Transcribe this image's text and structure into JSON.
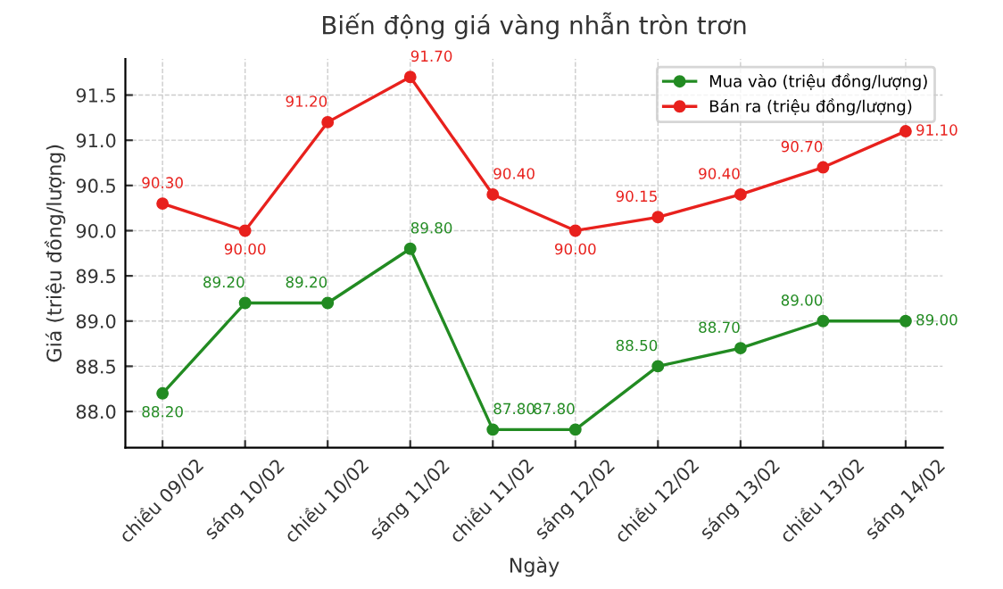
{
  "chart_data": {
    "type": "line",
    "title": "Biến động giá vàng nhẫn tròn trơn",
    "xlabel": "Ngày",
    "ylabel": "Giá (triệu đồng/lượng)",
    "categories": [
      "chiều 09/02",
      "sáng 10/02",
      "chiều 10/02",
      "sáng 11/02",
      "chiều 11/02",
      "sáng 12/02",
      "chiều 12/02",
      "sáng 13/02",
      "chiều 13/02",
      "sáng 14/02"
    ],
    "series": [
      {
        "name": "Mua vào (triệu đồng/lượng)",
        "color": "#228b22",
        "values": [
          88.2,
          89.2,
          89.2,
          89.8,
          87.8,
          87.8,
          88.5,
          88.7,
          89.0,
          89.0
        ],
        "value_labels": [
          "88.20",
          "89.20",
          "89.20",
          "89.80",
          "87.80",
          "87.80",
          "88.50",
          "88.70",
          "89.00",
          "89.00"
        ]
      },
      {
        "name": "Bán ra (triệu đồng/lượng)",
        "color": "#e8211d",
        "values": [
          90.3,
          90.0,
          91.2,
          91.7,
          90.4,
          90.0,
          90.15,
          90.4,
          90.7,
          91.1
        ],
        "value_labels": [
          "90.30",
          "90.00",
          "91.20",
          "91.70",
          "90.40",
          "90.00",
          "90.15",
          "90.40",
          "90.70",
          "91.10"
        ]
      }
    ],
    "ylim": [
      87.6,
      91.9
    ],
    "yticks": [
      {
        "value": 88,
        "label": "88.0"
      },
      {
        "value": 88.5,
        "label": "88.5"
      },
      {
        "value": 89,
        "label": "89.0"
      },
      {
        "value": 89.5,
        "label": "89.5"
      },
      {
        "value": 90,
        "label": "90.0"
      },
      {
        "value": 90.5,
        "label": "90.5"
      },
      {
        "value": 91,
        "label": "91.0"
      },
      {
        "value": 91.5,
        "label": "91.5"
      }
    ],
    "grid": true,
    "legend": "top right",
    "marker": "circle",
    "line_style": "solid"
  }
}
